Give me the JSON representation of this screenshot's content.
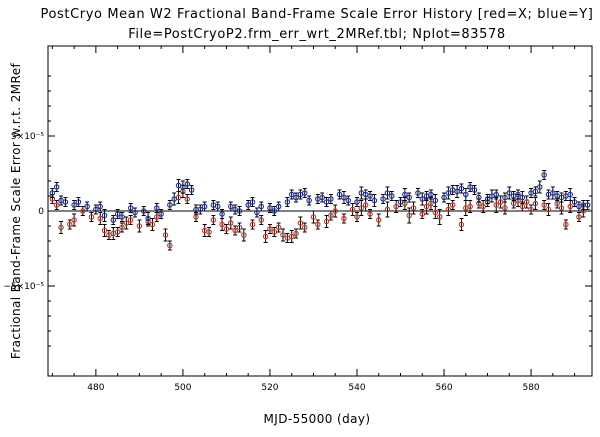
{
  "chart_data": {
    "type": "scatter",
    "title": "PostCryo Mean W2 Fractional Band-Frame Scale Error History [red=X; blue=Y]",
    "subtitle": "File=PostCryoP2.frm_err_wrt_2MRef.tbl; Nplot=83578",
    "xlabel": "MJD-55000 (day)",
    "ylabel": "Fractional Band-Frame Scale Error w.r.t. 2MRef",
    "xlim": [
      469,
      594
    ],
    "ylim": [
      -0.00011,
      0.00011
    ],
    "x_ticks": [
      480,
      500,
      520,
      540,
      560,
      580
    ],
    "x_tick_labels": [
      "480",
      "500",
      "520",
      "540",
      "560",
      "580"
    ],
    "y_ticks": [
      5e-05,
      0,
      -5e-05
    ],
    "y_tick_labels": [
      "5×10⁻⁵",
      "0",
      "−5×10⁻⁵"
    ],
    "zero_line": true,
    "grid": false,
    "colors": {
      "X": "#c0392b",
      "Y": "#1f2fa0",
      "errorbar": "#000000",
      "axis": "#000000"
    },
    "series": [
      {
        "name": "X",
        "x": [
          470,
          471,
          472,
          474,
          475,
          477,
          479,
          481,
          482,
          483,
          484,
          485,
          486,
          487,
          488,
          490,
          492,
          493,
          494,
          496,
          497,
          499,
          500,
          501,
          503,
          505,
          506,
          507,
          509,
          510,
          511,
          512,
          513,
          514,
          516,
          518,
          519,
          520,
          521,
          522,
          523,
          524,
          525,
          526,
          527,
          528,
          530,
          531,
          533,
          534,
          535,
          537,
          539,
          540,
          541,
          542,
          543,
          545,
          547,
          549,
          551,
          552,
          553,
          555,
          556,
          557,
          558,
          559,
          561,
          562,
          564,
          565,
          566,
          568,
          569,
          570,
          572,
          573,
          574,
          576,
          577,
          578,
          579,
          580,
          581,
          583,
          584,
          586,
          587,
          588,
          589,
          591,
          592
        ],
        "y": [
          8e-06,
          4e-06,
          -1.1e-05,
          -9e-06,
          -6e-06,
          0.0,
          -4e-06,
          -5e-06,
          -1.3e-05,
          -1.6e-05,
          -1.5e-05,
          -1.4e-05,
          -1.1e-05,
          -8e-06,
          -6e-06,
          -1e-05,
          -7e-06,
          -9e-06,
          -4e-06,
          -1.6e-05,
          -2.3e-05,
          9e-06,
          1.3e-05,
          8e-06,
          -4e-06,
          -1.3e-05,
          -1.4e-05,
          -6e-06,
          -9e-06,
          -1.2e-05,
          -8e-06,
          -1.3e-05,
          -1.1e-05,
          -1.6e-05,
          -9e-06,
          -6e-06,
          -1.7e-05,
          -1.2e-05,
          -1.4e-05,
          -1.1e-05,
          -1.6e-05,
          -1.8e-05,
          -1.7e-05,
          -1.5e-05,
          -8e-06,
          -1.1e-05,
          -4e-06,
          -9e-06,
          -7e-06,
          -3e-06,
          0.0,
          -5e-06,
          1e-06,
          -4e-06,
          2e-06,
          4e-06,
          -2e-06,
          -6e-06,
          1e-06,
          3e-06,
          5e-06,
          -3e-06,
          2e-06,
          -2e-06,
          3e-06,
          5e-06,
          -1e-06,
          -4e-06,
          1e-06,
          4e-06,
          -9e-06,
          2e-06,
          3e-06,
          5e-06,
          3e-06,
          6e-06,
          4e-06,
          6e-06,
          2e-06,
          5e-06,
          7e-06,
          3e-06,
          6e-06,
          1e-06,
          5e-06,
          4e-06,
          1e-06,
          5e-06,
          2e-06,
          -9e-06,
          3e-06,
          -4e-06,
          0.0
        ],
        "err": [
          3e-06,
          3e-06,
          4e-06,
          3e-06,
          4e-06,
          3e-06,
          3e-06,
          4e-06,
          4e-06,
          3e-06,
          4e-06,
          3e-06,
          3e-06,
          4e-06,
          3e-06,
          4e-06,
          3e-06,
          4e-06,
          3e-06,
          4e-06,
          3e-06,
          4e-06,
          4e-06,
          3e-06,
          3e-06,
          4e-06,
          3e-06,
          3e-06,
          4e-06,
          3e-06,
          4e-06,
          3e-06,
          3e-06,
          4e-06,
          3e-06,
          3e-06,
          4e-06,
          3e-06,
          3e-06,
          3e-06,
          4e-06,
          3e-06,
          4e-06,
          3e-06,
          4e-06,
          3e-06,
          4e-06,
          3e-06,
          4e-06,
          3e-06,
          4e-06,
          3e-06,
          4e-06,
          3e-06,
          5e-06,
          4e-06,
          3e-06,
          4e-06,
          5e-06,
          4e-06,
          4e-06,
          5e-06,
          4e-06,
          3e-06,
          5e-06,
          4e-06,
          4e-06,
          5e-06,
          4e-06,
          3e-06,
          4e-06,
          5e-06,
          4e-06,
          3e-06,
          4e-06,
          3e-06,
          5e-06,
          4e-06,
          4e-06,
          3e-06,
          4e-06,
          3e-06,
          4e-06,
          3e-06,
          4e-06,
          3e-06,
          4e-06,
          3e-06,
          4e-06,
          3e-06,
          4e-06,
          3e-06,
          4e-06
        ]
      },
      {
        "name": "Y",
        "x": [
          470,
          471,
          472,
          473,
          475,
          476,
          478,
          480,
          481,
          482,
          484,
          485,
          486,
          488,
          489,
          491,
          492,
          494,
          495,
          497,
          498,
          499,
          500,
          501,
          502,
          503,
          504,
          505,
          507,
          508,
          509,
          511,
          512,
          513,
          515,
          516,
          517,
          518,
          520,
          521,
          522,
          524,
          525,
          526,
          527,
          528,
          529,
          531,
          532,
          533,
          534,
          536,
          537,
          538,
          540,
          541,
          542,
          543,
          544,
          546,
          547,
          548,
          550,
          551,
          552,
          554,
          555,
          556,
          557,
          558,
          560,
          561,
          562,
          563,
          564,
          565,
          566,
          567,
          568,
          570,
          571,
          572,
          574,
          575,
          576,
          577,
          578,
          580,
          581,
          582,
          583,
          584,
          585,
          586,
          587,
          588,
          589,
          590,
          591,
          592,
          593
        ],
        "y": [
          1.2e-05,
          1.6e-05,
          7e-06,
          6e-06,
          4e-06,
          6e-06,
          3e-06,
          1e-06,
          3e-06,
          -3e-06,
          -6e-06,
          -2e-06,
          -4e-06,
          2e-06,
          -1e-06,
          0.0,
          -5e-06,
          2e-06,
          -2e-06,
          4e-06,
          8e-06,
          1.7e-05,
          1.6e-05,
          1.8e-05,
          1.4e-05,
          1e-06,
          1e-06,
          3e-06,
          4e-06,
          3e-06,
          -2e-06,
          3e-06,
          1e-06,
          0.0,
          4e-06,
          6e-06,
          -1e-06,
          3e-06,
          2e-06,
          0.0,
          3e-06,
          6e-06,
          1.1e-05,
          9e-06,
          1.1e-05,
          1.2e-05,
          7e-06,
          8e-06,
          9e-06,
          6e-06,
          8e-06,
          1.1e-05,
          9e-06,
          7e-06,
          6e-06,
          1.2e-05,
          1.1e-05,
          1e-05,
          7e-06,
          8e-06,
          1.2e-05,
          1e-05,
          6e-06,
          1.1e-05,
          9e-06,
          1.2e-05,
          8e-06,
          1e-05,
          1.1e-05,
          7e-06,
          9e-06,
          1.2e-05,
          1.4e-05,
          1.3e-05,
          1.5e-05,
          1.1e-05,
          1.6e-05,
          1.4e-05,
          9e-06,
          8e-06,
          1e-05,
          1.1e-05,
          9e-06,
          1.2e-05,
          1e-05,
          1.1e-05,
          9e-06,
          1.2e-05,
          1.3e-05,
          1.6e-05,
          2.4e-05,
          1.1e-05,
          1.2e-05,
          1e-05,
          9e-06,
          1e-05,
          1.1e-05,
          6e-06,
          3e-06,
          4e-06,
          4e-06
        ],
        "err": [
          3e-06,
          3e-06,
          3e-06,
          3e-06,
          3e-06,
          3e-06,
          3e-06,
          3e-06,
          3e-06,
          4e-06,
          3e-06,
          3e-06,
          3e-06,
          3e-06,
          3e-06,
          3e-06,
          4e-06,
          3e-06,
          3e-06,
          3e-06,
          4e-06,
          4e-06,
          4e-06,
          3e-06,
          3e-06,
          3e-06,
          3e-06,
          3e-06,
          3e-06,
          3e-06,
          3e-06,
          3e-06,
          3e-06,
          3e-06,
          3e-06,
          3e-06,
          3e-06,
          3e-06,
          3e-06,
          3e-06,
          3e-06,
          3e-06,
          3e-06,
          3e-06,
          3e-06,
          3e-06,
          3e-06,
          3e-06,
          3e-06,
          3e-06,
          3e-06,
          3e-06,
          4e-06,
          3e-06,
          3e-06,
          4e-06,
          3e-06,
          3e-06,
          4e-06,
          3e-06,
          4e-06,
          3e-06,
          3e-06,
          4e-06,
          3e-06,
          3e-06,
          4e-06,
          3e-06,
          3e-06,
          4e-06,
          3e-06,
          4e-06,
          3e-06,
          4e-06,
          3e-06,
          4e-06,
          3e-06,
          3e-06,
          3e-06,
          3e-06,
          4e-06,
          3e-06,
          3e-06,
          4e-06,
          3e-06,
          3e-06,
          4e-06,
          3e-06,
          3e-06,
          4e-06,
          3e-06,
          3e-06,
          4e-06,
          3e-06,
          3e-06,
          3e-06,
          4e-06,
          3e-06,
          3e-06,
          3e-06,
          3e-06
        ]
      }
    ]
  }
}
